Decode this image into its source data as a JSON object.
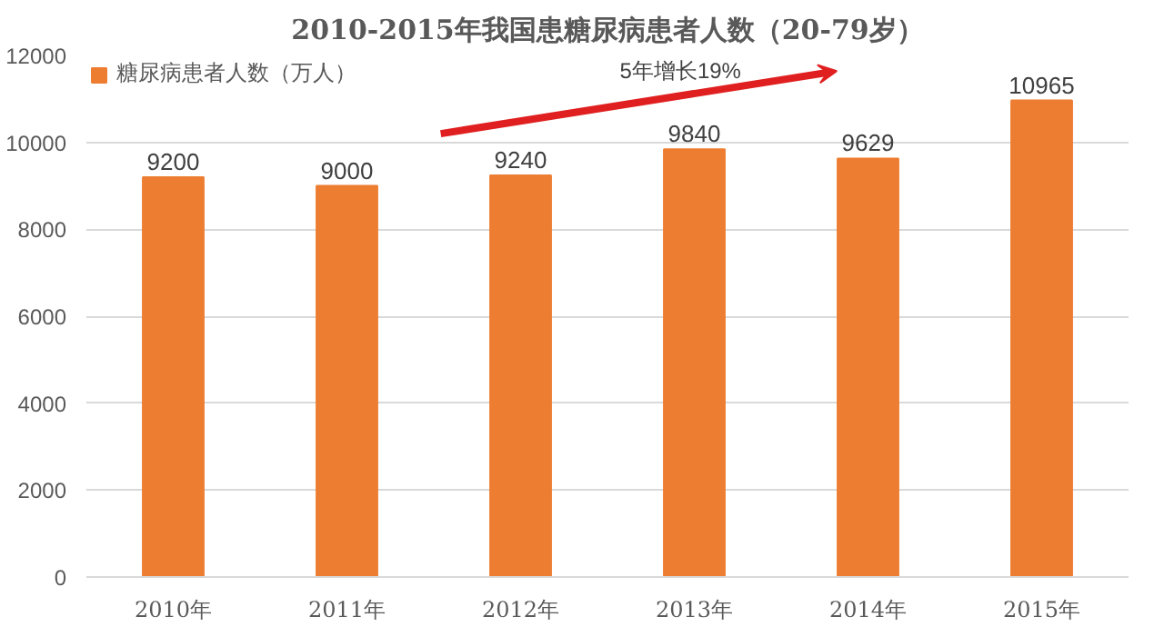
{
  "chart_data": {
    "type": "bar",
    "title": "2010-2015年我国患糖尿病患者人数（20-79岁）",
    "categories": [
      "2010年",
      "2011年",
      "2012年",
      "2013年",
      "2014年",
      "2015年"
    ],
    "series": [
      {
        "name": "糖尿病患者人数（万人）",
        "color": "#ed7d31",
        "values": [
          9200,
          9000,
          9240,
          9840,
          9629,
          10965
        ]
      }
    ],
    "ylim": [
      0,
      12000
    ],
    "yticks": [
      0,
      2000,
      4000,
      6000,
      8000,
      10000,
      12000
    ],
    "grid": "y",
    "legend": "top left",
    "data_labels": true,
    "annotations": [
      "5年增长19%"
    ]
  }
}
